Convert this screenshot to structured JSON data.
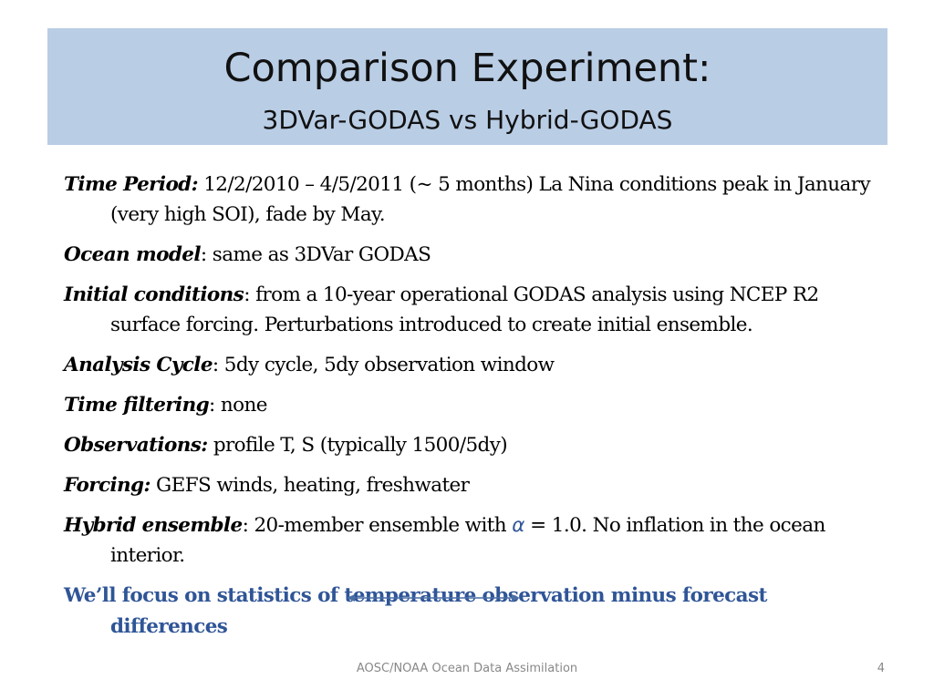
{
  "slide": {
    "title": "Comparison Experiment:",
    "subtitle": "3DVar-GODAS vs Hybrid-GODAS"
  },
  "bullets": [
    {
      "label": "Time Period:",
      "text": " 12/2/2010 – 4/5/2011 (~ 5 months)  La Nina conditions peak in January (very high SOI), fade by May."
    },
    {
      "label": "Ocean model",
      "text": ": same as 3DVar GODAS"
    },
    {
      "label": "Initial conditions",
      "text": ": from a 10-year operational GODAS analysis using NCEP R2 surface forcing.  Perturbations introduced to create initial ensemble."
    },
    {
      "label": "Analysis Cycle",
      "text": ": 5dy cycle, 5dy observation window"
    },
    {
      "label": "Time filtering",
      "text": ": none"
    },
    {
      "label": "Observations:",
      "text": " profile T, S  (typically 1500/5dy)"
    },
    {
      "label": "Forcing:",
      "text": " GEFS winds, heating, freshwater"
    },
    {
      "label": "Hybrid ensemble",
      "text_before": ": 20-member ensemble with ",
      "symbol": "α",
      "text_after": " = 1.0.  No inflation in the ocean interior."
    }
  ],
  "focus_text": "We’ll focus on statistics of temperature observation minus forecast differences",
  "footer": {
    "center": "AOSC/NOAA Ocean Data Assimilation",
    "page_number": "4"
  },
  "colors": {
    "title_band": "#b9cde5",
    "focus_text": "#2f5597",
    "arrow": "#4a6fa5"
  }
}
